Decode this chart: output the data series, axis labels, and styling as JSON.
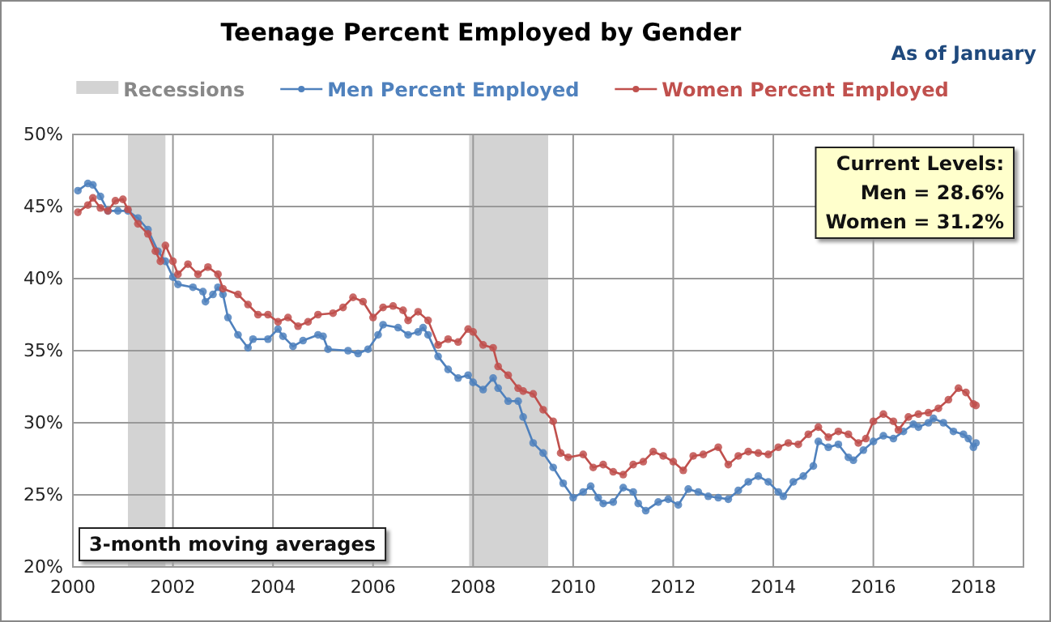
{
  "chart_data": {
    "type": "line",
    "title": "Teenage Percent Employed by Gender",
    "subtitle": "As of January",
    "annotations": [
      "Current Levels:\nMen = 28.6%\nWomen = 31.2%",
      "3-month moving averages"
    ],
    "xlim": [
      2000,
      2019
    ],
    "xticks": [
      2000,
      2002,
      2004,
      2006,
      2008,
      2010,
      2012,
      2014,
      2016,
      2018
    ],
    "ylim": [
      20,
      50
    ],
    "yticks": [
      {
        "value": 20,
        "label": "20%"
      },
      {
        "value": 25,
        "label": "25%"
      },
      {
        "value": 30,
        "label": "30%"
      },
      {
        "value": 35,
        "label": "35%"
      },
      {
        "value": 40,
        "label": "40%"
      },
      {
        "value": 45,
        "label": "45%"
      },
      {
        "value": 50,
        "label": "50%"
      }
    ],
    "grid": true,
    "legend": "top",
    "marker": "circle",
    "line_style": "solid",
    "bands": [
      {
        "axis": "x",
        "from": 2001.1,
        "to": 2001.85,
        "label": "Recessions",
        "color": "#d3d3d3"
      },
      {
        "axis": "x",
        "from": 2007.92,
        "to": 2009.5,
        "color": "#d3d3d3"
      }
    ],
    "series": [
      {
        "name": "Men Percent Employed",
        "color": "#4f81bd",
        "x": [
          2000.1,
          2000.3,
          2000.4,
          2000.55,
          2000.7,
          2000.9,
          2001.1,
          2001.3,
          2001.5,
          2001.7,
          2001.85,
          2002.0,
          2002.1,
          2002.4,
          2002.6,
          2002.65,
          2002.8,
          2002.9,
          2003.0,
          2003.1,
          2003.3,
          2003.5,
          2003.6,
          2003.9,
          2004.1,
          2004.2,
          2004.4,
          2004.6,
          2004.9,
          2005.0,
          2005.1,
          2005.5,
          2005.7,
          2005.9,
          2006.1,
          2006.2,
          2006.5,
          2006.7,
          2006.9,
          2007.0,
          2007.1,
          2007.3,
          2007.5,
          2007.7,
          2007.9,
          2008.0,
          2008.2,
          2008.4,
          2008.5,
          2008.7,
          2008.9,
          2009.0,
          2009.2,
          2009.4,
          2009.6,
          2009.8,
          2010.0,
          2010.2,
          2010.35,
          2010.5,
          2010.6,
          2010.8,
          2011.0,
          2011.2,
          2011.3,
          2011.45,
          2011.7,
          2011.9,
          2012.1,
          2012.3,
          2012.5,
          2012.7,
          2012.9,
          2013.1,
          2013.3,
          2013.5,
          2013.7,
          2013.9,
          2014.1,
          2014.2,
          2014.4,
          2014.6,
          2014.8,
          2014.9,
          2015.1,
          2015.3,
          2015.5,
          2015.6,
          2015.8,
          2016.0,
          2016.2,
          2016.4,
          2016.6,
          2016.8,
          2016.9,
          2017.1,
          2017.2,
          2017.4,
          2017.6,
          2017.8,
          2017.9,
          2018.0,
          2018.05
        ],
        "values": [
          46.1,
          46.6,
          46.5,
          45.7,
          44.7,
          44.7,
          44.7,
          44.2,
          43.4,
          41.9,
          41.2,
          40.1,
          39.6,
          39.4,
          39.1,
          38.4,
          38.9,
          39.4,
          38.9,
          37.3,
          36.1,
          35.2,
          35.8,
          35.8,
          36.5,
          36.0,
          35.3,
          35.7,
          36.1,
          36.0,
          35.1,
          35.0,
          34.8,
          35.1,
          36.1,
          36.8,
          36.6,
          36.1,
          36.3,
          36.6,
          36.1,
          34.6,
          33.7,
          33.1,
          33.3,
          32.8,
          32.3,
          33.1,
          32.4,
          31.5,
          31.5,
          30.4,
          28.6,
          27.9,
          26.9,
          25.8,
          24.8,
          25.2,
          25.6,
          24.8,
          24.4,
          24.5,
          25.5,
          25.2,
          24.4,
          23.9,
          24.5,
          24.7,
          24.3,
          25.4,
          25.2,
          24.9,
          24.8,
          24.7,
          25.3,
          25.9,
          26.3,
          25.9,
          25.2,
          24.9,
          25.9,
          26.3,
          27.0,
          28.7,
          28.3,
          28.5,
          27.6,
          27.4,
          28.1,
          28.7,
          29.1,
          28.9,
          29.4,
          29.9,
          29.7,
          30.0,
          30.3,
          30.0,
          29.4,
          29.2,
          28.9,
          28.3,
          28.6
        ]
      },
      {
        "name": "Women Percent Employed",
        "color": "#c0504d",
        "x": [
          2000.1,
          2000.3,
          2000.4,
          2000.55,
          2000.7,
          2000.85,
          2001.0,
          2001.1,
          2001.3,
          2001.5,
          2001.65,
          2001.75,
          2001.85,
          2002.0,
          2002.1,
          2002.3,
          2002.5,
          2002.7,
          2002.9,
          2003.0,
          2003.3,
          2003.5,
          2003.7,
          2003.9,
          2004.1,
          2004.3,
          2004.5,
          2004.7,
          2004.9,
          2005.2,
          2005.4,
          2005.6,
          2005.8,
          2006.0,
          2006.2,
          2006.4,
          2006.6,
          2006.7,
          2006.9,
          2007.1,
          2007.3,
          2007.5,
          2007.7,
          2007.9,
          2008.0,
          2008.2,
          2008.4,
          2008.5,
          2008.7,
          2008.9,
          2009.0,
          2009.2,
          2009.4,
          2009.6,
          2009.75,
          2009.9,
          2010.2,
          2010.4,
          2010.6,
          2010.8,
          2011.0,
          2011.2,
          2011.4,
          2011.6,
          2011.8,
          2012.0,
          2012.2,
          2012.4,
          2012.6,
          2012.9,
          2013.1,
          2013.3,
          2013.5,
          2013.7,
          2013.9,
          2014.1,
          2014.3,
          2014.5,
          2014.7,
          2014.9,
          2015.1,
          2015.3,
          2015.5,
          2015.7,
          2015.85,
          2016.0,
          2016.2,
          2016.4,
          2016.5,
          2016.7,
          2016.9,
          2017.1,
          2017.3,
          2017.5,
          2017.7,
          2017.85,
          2018.0,
          2018.05
        ],
        "values": [
          44.6,
          45.1,
          45.6,
          44.9,
          44.7,
          45.4,
          45.5,
          44.8,
          43.8,
          43.1,
          41.9,
          41.2,
          42.3,
          41.2,
          40.3,
          41.0,
          40.3,
          40.8,
          40.3,
          39.3,
          38.9,
          38.2,
          37.5,
          37.5,
          37.0,
          37.3,
          36.7,
          37.0,
          37.5,
          37.6,
          38.0,
          38.7,
          38.4,
          37.3,
          38.0,
          38.1,
          37.8,
          37.1,
          37.7,
          37.1,
          35.4,
          35.8,
          35.6,
          36.5,
          36.3,
          35.4,
          35.2,
          33.9,
          33.3,
          32.4,
          32.2,
          32.0,
          30.9,
          30.1,
          27.9,
          27.6,
          27.8,
          26.9,
          27.1,
          26.6,
          26.4,
          27.1,
          27.3,
          28.0,
          27.7,
          27.3,
          26.7,
          27.7,
          27.8,
          28.3,
          27.1,
          27.7,
          28.0,
          27.9,
          27.8,
          28.3,
          28.6,
          28.5,
          29.2,
          29.7,
          29.0,
          29.4,
          29.2,
          28.6,
          28.9,
          30.1,
          30.6,
          30.1,
          29.5,
          30.4,
          30.6,
          30.7,
          31.0,
          31.6,
          32.4,
          32.1,
          31.3,
          31.2
        ]
      }
    ]
  }
}
